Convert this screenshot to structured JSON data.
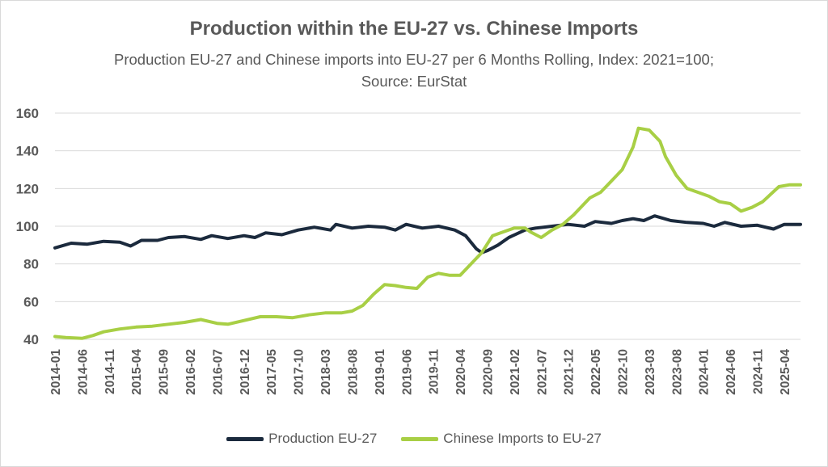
{
  "chart_data": {
    "type": "line",
    "title": "Production within the EU-27 vs. Chinese Imports",
    "subtitle": "Production EU-27 and Chinese imports into EU-27 per 6 Months Rolling, Index: 2021=100; Source: EurStat",
    "xlabel": "",
    "ylabel": "",
    "ylim": [
      40,
      160
    ],
    "yticks": [
      40,
      60,
      80,
      100,
      120,
      140,
      160
    ],
    "x_start": "2014-01",
    "x_end": "2025-07",
    "x_tick_labels": [
      "2014-01",
      "2014-06",
      "2014-11",
      "2015-04",
      "2015-09",
      "2016-02",
      "2016-07",
      "2016-12",
      "2017-05",
      "2017-10",
      "2018-03",
      "2018-08",
      "2019-01",
      "2019-06",
      "2019-11",
      "2020-04",
      "2020-09",
      "2021-02",
      "2021-07",
      "2021-12",
      "2022-05",
      "2022-10",
      "2023-03",
      "2023-08",
      "2024-01",
      "2024-06",
      "2024-11",
      "2025-04"
    ],
    "grid": true,
    "legend_position": "bottom",
    "series": [
      {
        "name": "Production EU-27",
        "color": "#1b2a3d",
        "points": [
          [
            "2014-01",
            88.5
          ],
          [
            "2014-04",
            91
          ],
          [
            "2014-07",
            90.5
          ],
          [
            "2014-10",
            92
          ],
          [
            "2015-01",
            91.5
          ],
          [
            "2015-03",
            89.5
          ],
          [
            "2015-05",
            92.5
          ],
          [
            "2015-08",
            92.5
          ],
          [
            "2015-10",
            94
          ],
          [
            "2016-01",
            94.5
          ],
          [
            "2016-04",
            93
          ],
          [
            "2016-06",
            95
          ],
          [
            "2016-09",
            93.5
          ],
          [
            "2016-12",
            95
          ],
          [
            "2017-02",
            94
          ],
          [
            "2017-04",
            96.5
          ],
          [
            "2017-07",
            95.5
          ],
          [
            "2017-10",
            98
          ],
          [
            "2018-01",
            99.5
          ],
          [
            "2018-04",
            98
          ],
          [
            "2018-05",
            101
          ],
          [
            "2018-08",
            99
          ],
          [
            "2018-11",
            100
          ],
          [
            "2019-02",
            99.5
          ],
          [
            "2019-04",
            98
          ],
          [
            "2019-06",
            101
          ],
          [
            "2019-09",
            99
          ],
          [
            "2019-12",
            100
          ],
          [
            "2020-03",
            98
          ],
          [
            "2020-05",
            95
          ],
          [
            "2020-07",
            88
          ],
          [
            "2020-08",
            86
          ],
          [
            "2020-09",
            87
          ],
          [
            "2020-11",
            90
          ],
          [
            "2021-01",
            94
          ],
          [
            "2021-04",
            98
          ],
          [
            "2021-06",
            99
          ],
          [
            "2021-09",
            100
          ],
          [
            "2021-12",
            101
          ],
          [
            "2022-03",
            100
          ],
          [
            "2022-05",
            102.5
          ],
          [
            "2022-08",
            101.5
          ],
          [
            "2022-10",
            103
          ],
          [
            "2022-12",
            104
          ],
          [
            "2023-02",
            103
          ],
          [
            "2023-04",
            105.5
          ],
          [
            "2023-07",
            103
          ],
          [
            "2023-10",
            102
          ],
          [
            "2024-01",
            101.5
          ],
          [
            "2024-03",
            100
          ],
          [
            "2024-05",
            102
          ],
          [
            "2024-08",
            100
          ],
          [
            "2024-11",
            100.5
          ],
          [
            "2025-02",
            98.5
          ],
          [
            "2025-04",
            101
          ],
          [
            "2025-07",
            101
          ]
        ]
      },
      {
        "name": "Chinese Imports to EU-27",
        "color": "#a8cf45",
        "points": [
          [
            "2014-01",
            41.5
          ],
          [
            "2014-03",
            41
          ],
          [
            "2014-06",
            40.5
          ],
          [
            "2014-08",
            42
          ],
          [
            "2014-10",
            44
          ],
          [
            "2015-01",
            45.5
          ],
          [
            "2015-04",
            46.5
          ],
          [
            "2015-07",
            47
          ],
          [
            "2015-10",
            48
          ],
          [
            "2016-01",
            49
          ],
          [
            "2016-04",
            50.5
          ],
          [
            "2016-07",
            48.5
          ],
          [
            "2016-09",
            48
          ],
          [
            "2016-12",
            50
          ],
          [
            "2017-03",
            52
          ],
          [
            "2017-06",
            52
          ],
          [
            "2017-09",
            51.5
          ],
          [
            "2017-12",
            53
          ],
          [
            "2018-03",
            54
          ],
          [
            "2018-06",
            54
          ],
          [
            "2018-08",
            55
          ],
          [
            "2018-10",
            58
          ],
          [
            "2018-12",
            64
          ],
          [
            "2019-02",
            69
          ],
          [
            "2019-04",
            68.5
          ],
          [
            "2019-06",
            67.5
          ],
          [
            "2019-08",
            67
          ],
          [
            "2019-10",
            73
          ],
          [
            "2019-12",
            75
          ],
          [
            "2020-02",
            74
          ],
          [
            "2020-04",
            74
          ],
          [
            "2020-06",
            80
          ],
          [
            "2020-08",
            86
          ],
          [
            "2020-10",
            95
          ],
          [
            "2020-12",
            97
          ],
          [
            "2021-02",
            99
          ],
          [
            "2021-04",
            99
          ],
          [
            "2021-05",
            97
          ],
          [
            "2021-07",
            94
          ],
          [
            "2021-09",
            98
          ],
          [
            "2021-11",
            101
          ],
          [
            "2022-01",
            106
          ],
          [
            "2022-04",
            115
          ],
          [
            "2022-06",
            118
          ],
          [
            "2022-08",
            124
          ],
          [
            "2022-10",
            130
          ],
          [
            "2022-12",
            142
          ],
          [
            "2023-01",
            152
          ],
          [
            "2023-03",
            151
          ],
          [
            "2023-05",
            145
          ],
          [
            "2023-06",
            137
          ],
          [
            "2023-08",
            127
          ],
          [
            "2023-10",
            120
          ],
          [
            "2023-12",
            118
          ],
          [
            "2024-02",
            116
          ],
          [
            "2024-04",
            113
          ],
          [
            "2024-06",
            112
          ],
          [
            "2024-08",
            108
          ],
          [
            "2024-10",
            110
          ],
          [
            "2024-12",
            113
          ],
          [
            "2025-03",
            121
          ],
          [
            "2025-05",
            122
          ],
          [
            "2025-07",
            122
          ]
        ]
      }
    ]
  }
}
